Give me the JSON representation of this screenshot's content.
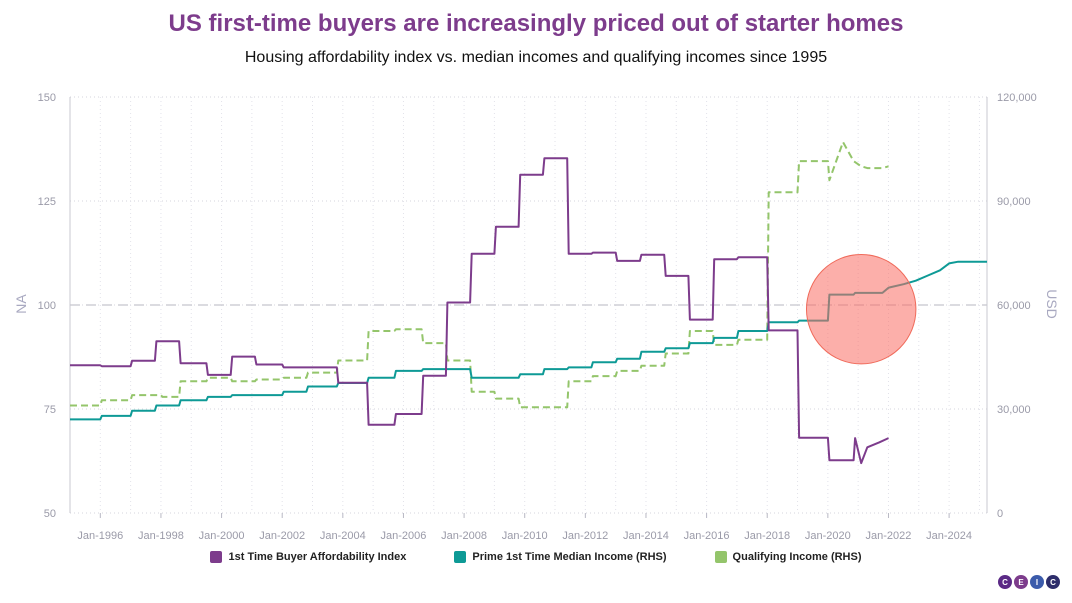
{
  "chart_data": {
    "type": "line",
    "title": "US first-time buyers are increasingly priced out of starter homes",
    "subtitle": "Housing affordability index vs. median incomes and qualifying incomes since 1995",
    "left_axis": {
      "label": "NA",
      "range": [
        50,
        150
      ],
      "ticks": [
        "50",
        "75",
        "100",
        "125",
        "150"
      ],
      "tick_values": [
        50,
        75,
        100,
        125,
        150
      ]
    },
    "right_axis": {
      "label": "USD",
      "range": [
        0,
        120000
      ],
      "ticks": [
        "0",
        "30,000",
        "60,000",
        "90,000",
        "120,000"
      ],
      "tick_values": [
        0,
        30000,
        60000,
        90000,
        120000
      ]
    },
    "x_range": [
      1995.0,
      2025.25
    ],
    "x_ticks": [
      {
        "label": "Jan-1996",
        "value": 1996
      },
      {
        "label": "Jan-1998",
        "value": 1998
      },
      {
        "label": "Jan-2000",
        "value": 2000
      },
      {
        "label": "Jan-2002",
        "value": 2002
      },
      {
        "label": "Jan-2004",
        "value": 2004
      },
      {
        "label": "Jan-2006",
        "value": 2006
      },
      {
        "label": "Jan-2008",
        "value": 2008
      },
      {
        "label": "Jan-2010",
        "value": 2010
      },
      {
        "label": "Jan-2012",
        "value": 2012
      },
      {
        "label": "Jan-2014",
        "value": 2014
      },
      {
        "label": "Jan-2016",
        "value": 2016
      },
      {
        "label": "Jan-2018",
        "value": 2018
      },
      {
        "label": "Jan-2020",
        "value": 2020
      },
      {
        "label": "Jan-2022",
        "value": 2022
      },
      {
        "label": "Jan-2024",
        "value": 2024
      }
    ],
    "reference_line": {
      "axis": "left",
      "value": 100
    },
    "highlight": {
      "x": 2021.1,
      "y_left": 99,
      "radius_years": 1.9
    },
    "series": [
      {
        "name": "1st Time Buyer Affordability Index",
        "axis": "left",
        "color": "#7d3c8c",
        "style": "solid",
        "points": [
          [
            1995.0,
            85.5
          ],
          [
            1996.0,
            85.5
          ],
          [
            1996.05,
            85.3
          ],
          [
            1997.0,
            85.3
          ],
          [
            1997.05,
            86.6
          ],
          [
            1997.8,
            86.6
          ],
          [
            1997.85,
            91.3
          ],
          [
            1998.6,
            91.3
          ],
          [
            1998.65,
            86.0
          ],
          [
            1999.5,
            86.0
          ],
          [
            1999.55,
            83.2
          ],
          [
            2000.3,
            83.2
          ],
          [
            2000.35,
            87.6
          ],
          [
            2001.1,
            87.6
          ],
          [
            2001.15,
            85.7
          ],
          [
            2002.0,
            85.7
          ],
          [
            2002.05,
            85.0
          ],
          [
            2002.8,
            85.0
          ],
          [
            2002.85,
            85.0
          ],
          [
            2003.8,
            85.0
          ],
          [
            2003.85,
            81.3
          ],
          [
            2004.8,
            81.3
          ],
          [
            2004.85,
            71.2
          ],
          [
            2005.7,
            71.2
          ],
          [
            2005.75,
            73.8
          ],
          [
            2006.6,
            73.8
          ],
          [
            2006.65,
            83.0
          ],
          [
            2007.4,
            83.0
          ],
          [
            2007.45,
            100.6
          ],
          [
            2008.2,
            100.6
          ],
          [
            2008.25,
            112.3
          ],
          [
            2009.0,
            112.3
          ],
          [
            2009.05,
            118.8
          ],
          [
            2009.8,
            118.8
          ],
          [
            2009.85,
            131.3
          ],
          [
            2010.6,
            131.3
          ],
          [
            2010.65,
            135.3
          ],
          [
            2011.4,
            135.3
          ],
          [
            2011.45,
            112.3
          ],
          [
            2012.2,
            112.3
          ],
          [
            2012.25,
            112.6
          ],
          [
            2013.0,
            112.6
          ],
          [
            2013.05,
            110.6
          ],
          [
            2013.8,
            110.6
          ],
          [
            2013.85,
            112.1
          ],
          [
            2014.6,
            112.1
          ],
          [
            2014.65,
            107.0
          ],
          [
            2015.4,
            107.0
          ],
          [
            2015.45,
            96.5
          ],
          [
            2016.2,
            96.5
          ],
          [
            2016.25,
            111.0
          ],
          [
            2017.0,
            111.0
          ],
          [
            2017.05,
            111.5
          ],
          [
            2018.0,
            111.5
          ],
          [
            2018.05,
            93.9
          ],
          [
            2019.0,
            93.9
          ],
          [
            2019.05,
            68.1
          ],
          [
            2020.0,
            68.1
          ],
          [
            2020.05,
            62.7
          ],
          [
            2020.85,
            62.7
          ],
          [
            2020.9,
            68.0
          ],
          [
            2021.1,
            62.0
          ],
          [
            2021.3,
            65.8
          ],
          [
            2021.7,
            67.0
          ],
          [
            2022.0,
            68.0
          ]
        ]
      },
      {
        "name": "Prime 1st Time Median Income (RHS)",
        "axis": "right",
        "color": "#0e9a96",
        "style": "solid",
        "points": [
          [
            1995.0,
            27000
          ],
          [
            1996.0,
            27000
          ],
          [
            1996.05,
            28000
          ],
          [
            1997.0,
            28000
          ],
          [
            1997.05,
            29500
          ],
          [
            1997.8,
            29500
          ],
          [
            1997.85,
            31000
          ],
          [
            1998.6,
            31000
          ],
          [
            1998.65,
            32500
          ],
          [
            1999.5,
            32500
          ],
          [
            1999.55,
            33500
          ],
          [
            2000.3,
            33500
          ],
          [
            2000.35,
            34000
          ],
          [
            2001.1,
            34000
          ],
          [
            2001.15,
            34000
          ],
          [
            2002.0,
            34000
          ],
          [
            2002.05,
            35000
          ],
          [
            2002.8,
            35000
          ],
          [
            2002.85,
            36500
          ],
          [
            2003.8,
            36500
          ],
          [
            2003.85,
            37500
          ],
          [
            2004.8,
            37500
          ],
          [
            2004.85,
            39000
          ],
          [
            2005.7,
            39000
          ],
          [
            2005.75,
            41000
          ],
          [
            2006.6,
            41000
          ],
          [
            2006.65,
            41500
          ],
          [
            2007.4,
            41500
          ],
          [
            2007.45,
            41500
          ],
          [
            2008.2,
            41500
          ],
          [
            2008.25,
            39000
          ],
          [
            2009.0,
            39000
          ],
          [
            2009.05,
            39000
          ],
          [
            2009.8,
            39000
          ],
          [
            2009.85,
            40000
          ],
          [
            2010.6,
            40000
          ],
          [
            2010.65,
            41500
          ],
          [
            2011.4,
            41500
          ],
          [
            2011.45,
            42000
          ],
          [
            2012.2,
            42000
          ],
          [
            2012.25,
            43500
          ],
          [
            2013.0,
            43500
          ],
          [
            2013.05,
            44500
          ],
          [
            2013.8,
            44500
          ],
          [
            2013.85,
            46500
          ],
          [
            2014.6,
            46500
          ],
          [
            2014.65,
            47500
          ],
          [
            2015.4,
            47500
          ],
          [
            2015.45,
            49000
          ],
          [
            2016.2,
            49000
          ],
          [
            2016.25,
            50500
          ],
          [
            2017.0,
            50500
          ],
          [
            2017.05,
            52500
          ],
          [
            2018.0,
            52500
          ],
          [
            2018.05,
            55000
          ],
          [
            2019.0,
            55000
          ],
          [
            2019.05,
            55500
          ],
          [
            2020.0,
            55500
          ],
          [
            2020.05,
            63000
          ],
          [
            2020.85,
            63000
          ],
          [
            2020.9,
            63500
          ],
          [
            2021.8,
            63500
          ],
          [
            2022.0,
            65000
          ],
          [
            2022.5,
            66000
          ],
          [
            2022.9,
            67000
          ],
          [
            2023.3,
            68500
          ],
          [
            2023.7,
            70000
          ],
          [
            2024.0,
            72000
          ],
          [
            2024.3,
            72500
          ],
          [
            2025.25,
            72500
          ]
        ]
      },
      {
        "name": "Qualifying Income (RHS)",
        "axis": "right",
        "color": "#94c56b",
        "style": "dashed",
        "points": [
          [
            1995.0,
            31000
          ],
          [
            1996.0,
            31000
          ],
          [
            1996.05,
            32500
          ],
          [
            1997.0,
            32500
          ],
          [
            1997.05,
            34000
          ],
          [
            1998.0,
            34000
          ],
          [
            1998.05,
            33500
          ],
          [
            1998.6,
            33500
          ],
          [
            1998.65,
            38000
          ],
          [
            1999.5,
            38000
          ],
          [
            1999.55,
            39000
          ],
          [
            2000.3,
            39000
          ],
          [
            2000.35,
            38000
          ],
          [
            2001.1,
            38000
          ],
          [
            2001.15,
            38500
          ],
          [
            2002.0,
            38500
          ],
          [
            2002.05,
            39000
          ],
          [
            2002.8,
            39000
          ],
          [
            2002.85,
            40500
          ],
          [
            2003.8,
            40500
          ],
          [
            2003.85,
            44000
          ],
          [
            2004.8,
            44000
          ],
          [
            2004.85,
            52500
          ],
          [
            2005.7,
            52500
          ],
          [
            2005.75,
            53000
          ],
          [
            2006.6,
            53000
          ],
          [
            2006.65,
            49000
          ],
          [
            2007.4,
            49000
          ],
          [
            2007.45,
            44000
          ],
          [
            2008.2,
            44000
          ],
          [
            2008.25,
            35000
          ],
          [
            2009.0,
            35000
          ],
          [
            2009.05,
            33000
          ],
          [
            2009.8,
            33000
          ],
          [
            2009.85,
            30500
          ],
          [
            2010.6,
            30500
          ],
          [
            2010.65,
            30500
          ],
          [
            2011.4,
            30500
          ],
          [
            2011.45,
            38000
          ],
          [
            2012.2,
            38000
          ],
          [
            2012.25,
            39500
          ],
          [
            2013.0,
            39500
          ],
          [
            2013.05,
            41000
          ],
          [
            2013.8,
            41000
          ],
          [
            2013.85,
            42500
          ],
          [
            2014.6,
            42500
          ],
          [
            2014.65,
            46000
          ],
          [
            2015.4,
            46000
          ],
          [
            2015.45,
            52500
          ],
          [
            2016.2,
            52500
          ],
          [
            2016.25,
            48500
          ],
          [
            2017.0,
            48500
          ],
          [
            2017.05,
            50000
          ],
          [
            2018.0,
            50000
          ],
          [
            2018.05,
            92500
          ],
          [
            2019.0,
            92500
          ],
          [
            2019.05,
            101500
          ],
          [
            2020.0,
            101500
          ],
          [
            2020.05,
            96000
          ],
          [
            2020.5,
            107000
          ],
          [
            2020.85,
            101500
          ],
          [
            2021.1,
            100000
          ],
          [
            2021.3,
            99500
          ],
          [
            2021.8,
            99500
          ],
          [
            2022.0,
            100000
          ]
        ]
      }
    ],
    "legend": [
      {
        "name": "1st Time Buyer Affordability Index",
        "color": "#7d3c8c"
      },
      {
        "name": "Prime 1st Time Median Income (RHS)",
        "color": "#0e9a96"
      },
      {
        "name": "Qualifying Income (RHS)",
        "color": "#94c56b"
      }
    ]
  },
  "branding": {
    "letters": [
      "C",
      "E",
      "I",
      "C"
    ]
  }
}
